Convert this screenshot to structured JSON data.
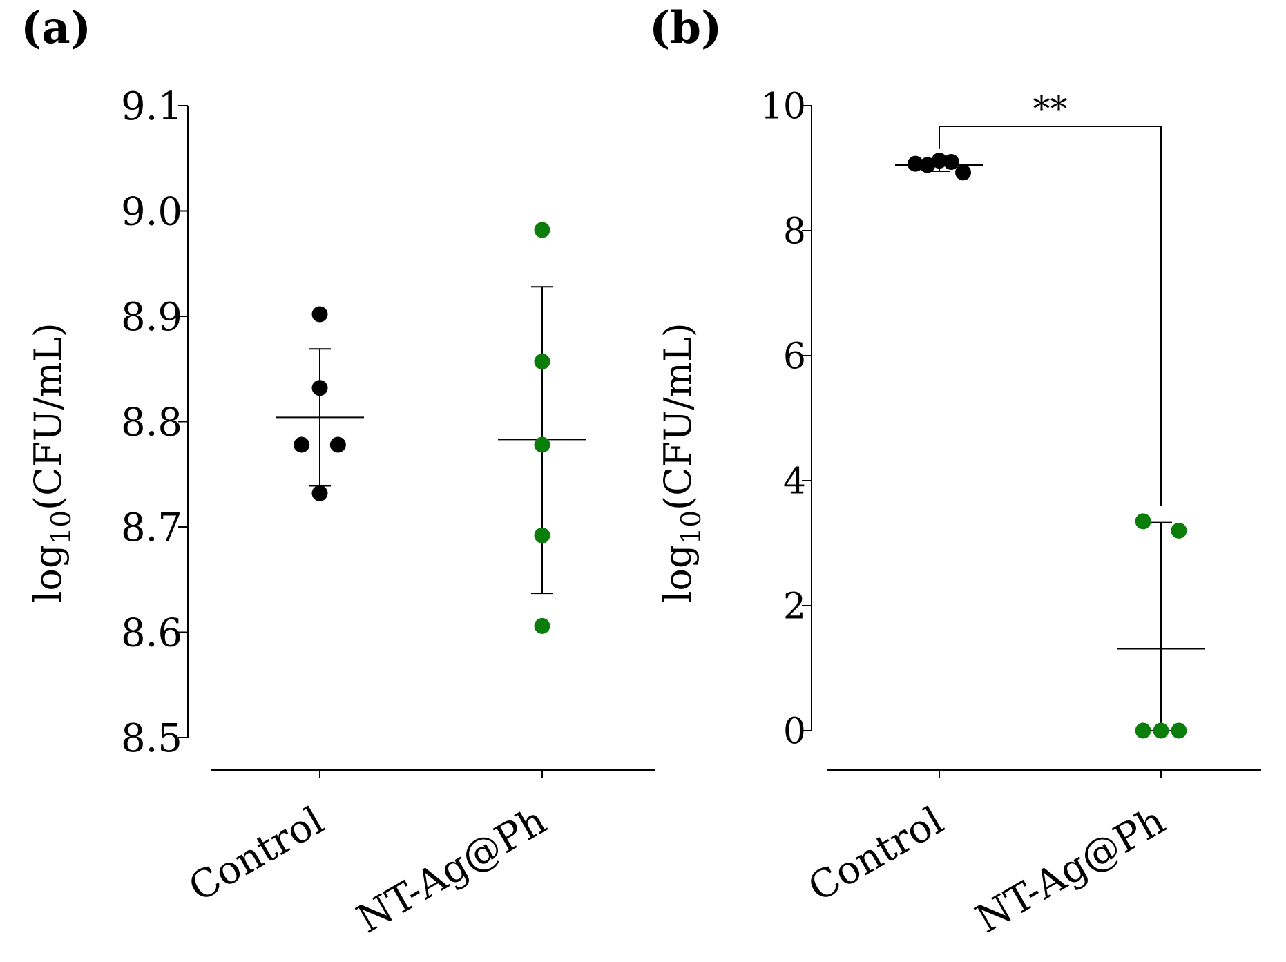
{
  "colors": {
    "control_points": "#000000",
    "treatment_points": "#0a7d0a",
    "axis": "#000000"
  },
  "chart_data": [
    {
      "type": "scatter",
      "panel_label": "(a)",
      "ylabel_main": "log",
      "ylabel_sub": "10",
      "ylabel_rest": "(CFU/mL)",
      "ylim": [
        8.5,
        9.1
      ],
      "yticks": [
        8.5,
        8.6,
        8.7,
        8.8,
        8.9,
        9.0,
        9.1
      ],
      "ytick_labels": [
        "8.5",
        "8.6",
        "8.7",
        "8.8",
        "8.9",
        "9.0",
        "9.1"
      ],
      "categories": [
        "Control",
        "NT-Ag@Ph"
      ],
      "series": [
        {
          "name": "Control",
          "points": [
            {
              "offset": 0,
              "y": 8.902
            },
            {
              "offset": 0,
              "y": 8.832
            },
            {
              "offset": -0.5,
              "y": 8.778
            },
            {
              "offset": 0.5,
              "y": 8.778
            },
            {
              "offset": 0,
              "y": 8.732
            }
          ],
          "mean": 8.804,
          "sd_low": 8.739,
          "sd_high": 8.869
        },
        {
          "name": "NT-Ag@Ph",
          "points": [
            {
              "offset": 0,
              "y": 8.982
            },
            {
              "offset": 0,
              "y": 8.857
            },
            {
              "offset": 0,
              "y": 8.778
            },
            {
              "offset": 0,
              "y": 8.692
            },
            {
              "offset": 0,
              "y": 8.606
            }
          ],
          "mean": 8.783,
          "sd_low": 8.637,
          "sd_high": 8.928
        }
      ]
    },
    {
      "type": "scatter",
      "panel_label": "(b)",
      "ylabel_main": "log",
      "ylabel_sub": "10",
      "ylabel_rest": "(CFU/mL)",
      "ylim": [
        0,
        10
      ],
      "yticks": [
        0,
        2,
        4,
        6,
        8,
        10
      ],
      "ytick_labels": [
        "0",
        "2",
        "4",
        "6",
        "8",
        "10"
      ],
      "categories": [
        "Control",
        "NT-Ag@Ph"
      ],
      "significance": "**",
      "series": [
        {
          "name": "Control",
          "points": [
            {
              "offset": -0.8,
              "y": 9.07
            },
            {
              "offset": -0.4,
              "y": 9.05
            },
            {
              "offset": 0,
              "y": 9.12
            },
            {
              "offset": 0.4,
              "y": 9.1
            },
            {
              "offset": 0.8,
              "y": 8.93
            }
          ],
          "mean": 9.05,
          "sd_low": 8.95,
          "sd_high": 9.15
        },
        {
          "name": "NT-Ag@Ph",
          "points": [
            {
              "offset": -0.6,
              "y": 3.35
            },
            {
              "offset": 0.6,
              "y": 3.2
            },
            {
              "offset": -0.6,
              "y": 0
            },
            {
              "offset": 0,
              "y": 0
            },
            {
              "offset": 0.6,
              "y": 0
            }
          ],
          "mean": 1.31,
          "sd_low": 0,
          "sd_high": 3.33
        }
      ]
    }
  ]
}
